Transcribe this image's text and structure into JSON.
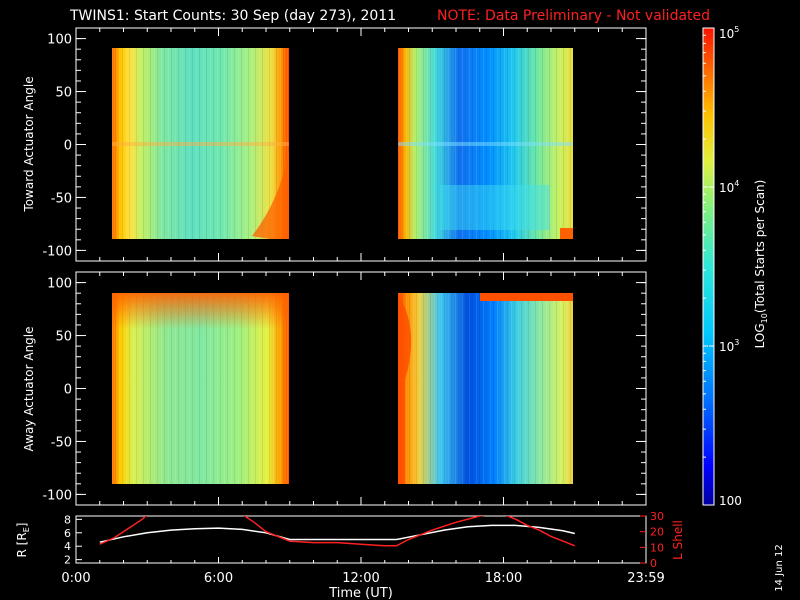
{
  "title": "TWINS1: Start Counts: 30 Sep (day 273), 2011",
  "note": "NOTE: Data Preliminary - Not validated",
  "stamp": "14 Jun 12",
  "colorbar": {
    "label": "LOG10(Total Starts per Scan)",
    "label_base": "LOG",
    "label_sub": "10",
    "label_rest": "(Total Starts per Scan)",
    "ticks": [
      {
        "base": "10",
        "exp": "5",
        "value": 100000
      },
      {
        "base": "10",
        "exp": "4",
        "value": 10000
      },
      {
        "base": "10",
        "exp": "3",
        "value": 1000
      },
      {
        "base": "100",
        "exp": "",
        "value": 100
      }
    ]
  },
  "colors": {
    "background": "#000000",
    "axes": "#ffffff",
    "note": "#ff2020",
    "lshell": "#ff2020",
    "radius": "#ffffff"
  },
  "chart_data": [
    {
      "type": "heatmap",
      "panel": "toward",
      "ylabel": "Toward Actuator Angle",
      "ylim": [
        -110,
        110
      ],
      "yticks": [
        "100",
        "50",
        "0",
        "-50",
        "-100"
      ],
      "ytick_values": [
        100,
        50,
        0,
        -50,
        -100
      ],
      "xlim": [
        0,
        24
      ],
      "data_segments": [
        {
          "t_start": 1.0,
          "t_end": 8.8,
          "angle_min": -88,
          "angle_max": 90
        },
        {
          "t_start": 13.5,
          "t_end": 21.0,
          "angle_min": -88,
          "angle_max": 90
        }
      ]
    },
    {
      "type": "heatmap",
      "panel": "away",
      "ylabel": "Away Actuator Angle",
      "ylim": [
        -110,
        110
      ],
      "yticks": [
        "100",
        "50",
        "0",
        "-50",
        "-100"
      ],
      "ytick_values": [
        100,
        50,
        0,
        -50,
        -100
      ],
      "xlim": [
        0,
        24
      ],
      "data_segments": [
        {
          "t_start": 1.0,
          "t_end": 8.8,
          "angle_min": -88,
          "angle_max": 90
        },
        {
          "t_start": 13.5,
          "t_end": 21.0,
          "angle_min": -88,
          "angle_max": 90
        }
      ]
    },
    {
      "type": "line",
      "panel": "orbit",
      "xlabel": "Time (UT)",
      "xticks": [
        "0:00",
        "6:00",
        "12:00",
        "18:00",
        "23:59"
      ],
      "xtick_values": [
        0,
        6,
        12,
        18,
        24
      ],
      "xlim": [
        0,
        24
      ],
      "left_axis": {
        "label_base": "R [R",
        "label_sub": "E",
        "label_end": "]",
        "ticks": [
          "8",
          "6",
          "4",
          "2"
        ],
        "values": [
          8,
          6,
          4,
          2
        ],
        "ylim": [
          1.5,
          8.5
        ]
      },
      "right_axis": {
        "label": "L Shell",
        "ticks": [
          "30",
          "20",
          "10",
          "0"
        ],
        "values": [
          30,
          20,
          10,
          0
        ],
        "ylim": [
          0,
          30
        ]
      },
      "series": [
        {
          "name": "R",
          "axis": "left",
          "color": "#ffffff",
          "x": [
            1.0,
            2.0,
            3.0,
            4.0,
            5.0,
            6.0,
            7.0,
            8.0,
            9.0,
            10.0,
            11.0,
            12.0,
            13.0,
            13.5,
            14.5,
            15.5,
            16.5,
            17.5,
            18.5,
            19.5,
            20.5,
            21.0
          ],
          "y": [
            4.6,
            5.4,
            6.0,
            6.4,
            6.6,
            6.7,
            6.5,
            6.0,
            5.0,
            5.0,
            5.0,
            5.0,
            5.0,
            5.0,
            5.7,
            6.4,
            6.9,
            7.1,
            7.1,
            6.8,
            6.3,
            5.9
          ]
        },
        {
          "name": "L Shell",
          "axis": "right",
          "color": "#ff2020",
          "x": [
            1.0,
            1.6,
            2.2,
            2.8,
            3.0,
            7.0,
            7.5,
            8.0,
            9.0,
            10.0,
            11.0,
            12.0,
            13.0,
            13.5,
            14.0,
            15.0,
            16.0,
            17.0,
            17.5,
            18.0,
            18.5,
            19.0,
            19.5,
            20.0,
            20.5,
            21.0
          ],
          "y": [
            12,
            16,
            22,
            28,
            31,
            31,
            26,
            20,
            14,
            13,
            13,
            12,
            11,
            11,
            15,
            21,
            26,
            30,
            31,
            31,
            28,
            24,
            21,
            17,
            14,
            11
          ]
        }
      ]
    }
  ]
}
